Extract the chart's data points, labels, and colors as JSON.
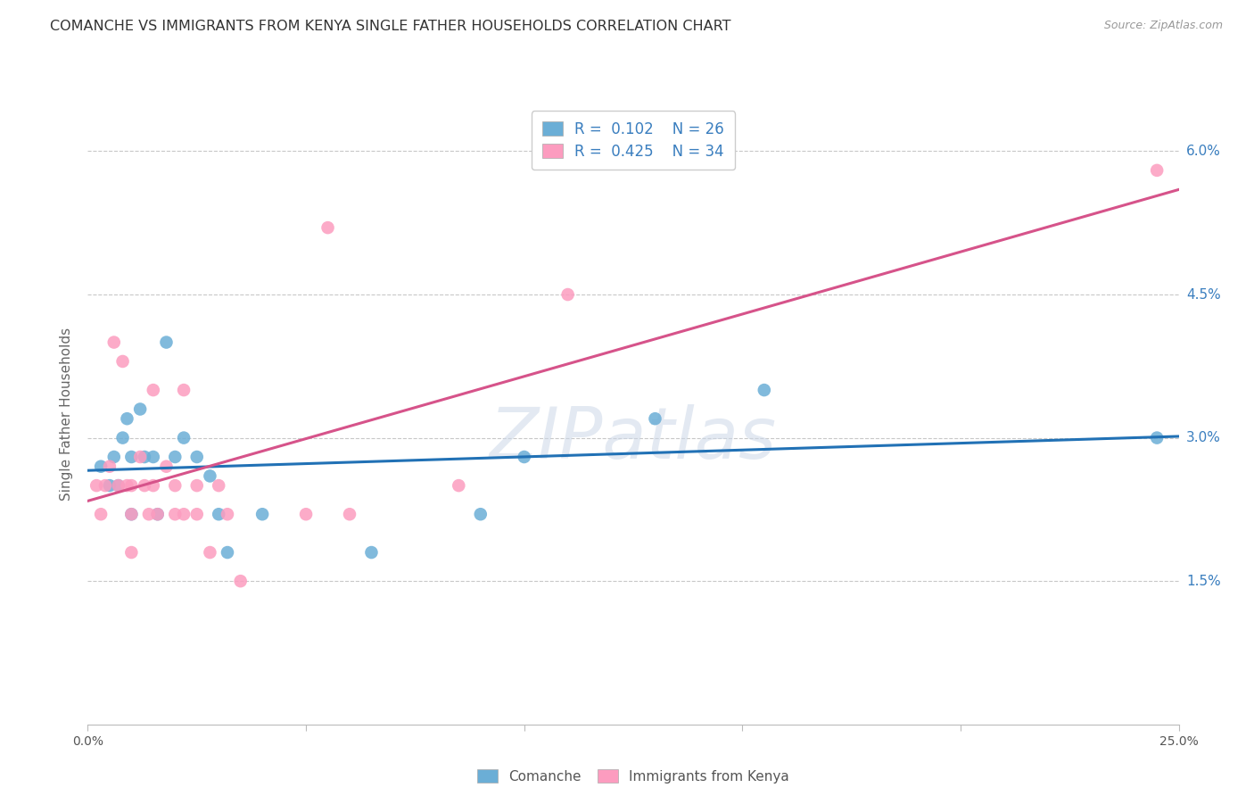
{
  "title": "COMANCHE VS IMMIGRANTS FROM KENYA SINGLE FATHER HOUSEHOLDS CORRELATION CHART",
  "source": "Source: ZipAtlas.com",
  "ylabel": "Single Father Households",
  "ylim": [
    0,
    0.065
  ],
  "xlim": [
    0,
    0.25
  ],
  "yticks": [
    0.015,
    0.03,
    0.045,
    0.06
  ],
  "ytick_labels": [
    "1.5%",
    "3.0%",
    "4.5%",
    "6.0%"
  ],
  "xticks": [
    0.0,
    0.05,
    0.1,
    0.15,
    0.2,
    0.25
  ],
  "xtick_labels": [
    "0.0%",
    "",
    "",
    "",
    "",
    "25.0%"
  ],
  "comanche_R": 0.102,
  "comanche_N": 26,
  "kenya_R": 0.425,
  "kenya_N": 34,
  "comanche_color": "#6baed6",
  "kenya_color": "#fc9cbf",
  "comanche_line_color": "#2171b5",
  "kenya_line_color": "#d6538a",
  "watermark": "ZIPatlas",
  "comanche_x": [
    0.003,
    0.005,
    0.006,
    0.007,
    0.008,
    0.009,
    0.01,
    0.01,
    0.012,
    0.013,
    0.015,
    0.016,
    0.018,
    0.02,
    0.022,
    0.025,
    0.028,
    0.03,
    0.032,
    0.04,
    0.065,
    0.09,
    0.1,
    0.13,
    0.155,
    0.245
  ],
  "comanche_y": [
    0.027,
    0.025,
    0.028,
    0.025,
    0.03,
    0.032,
    0.028,
    0.022,
    0.033,
    0.028,
    0.028,
    0.022,
    0.04,
    0.028,
    0.03,
    0.028,
    0.026,
    0.022,
    0.018,
    0.022,
    0.018,
    0.022,
    0.028,
    0.032,
    0.035,
    0.03
  ],
  "kenya_x": [
    0.002,
    0.003,
    0.004,
    0.005,
    0.006,
    0.007,
    0.008,
    0.009,
    0.01,
    0.01,
    0.01,
    0.012,
    0.013,
    0.014,
    0.015,
    0.015,
    0.016,
    0.018,
    0.02,
    0.02,
    0.022,
    0.022,
    0.025,
    0.025,
    0.028,
    0.03,
    0.032,
    0.035,
    0.05,
    0.055,
    0.06,
    0.085,
    0.11,
    0.245
  ],
  "kenya_y": [
    0.025,
    0.022,
    0.025,
    0.027,
    0.04,
    0.025,
    0.038,
    0.025,
    0.025,
    0.022,
    0.018,
    0.028,
    0.025,
    0.022,
    0.035,
    0.025,
    0.022,
    0.027,
    0.025,
    0.022,
    0.035,
    0.022,
    0.025,
    0.022,
    0.018,
    0.025,
    0.022,
    0.015,
    0.022,
    0.052,
    0.022,
    0.025,
    0.045,
    0.058
  ],
  "background_color": "#ffffff",
  "grid_color": "#c8c8c8",
  "title_color": "#333333",
  "axis_label_color": "#666666"
}
